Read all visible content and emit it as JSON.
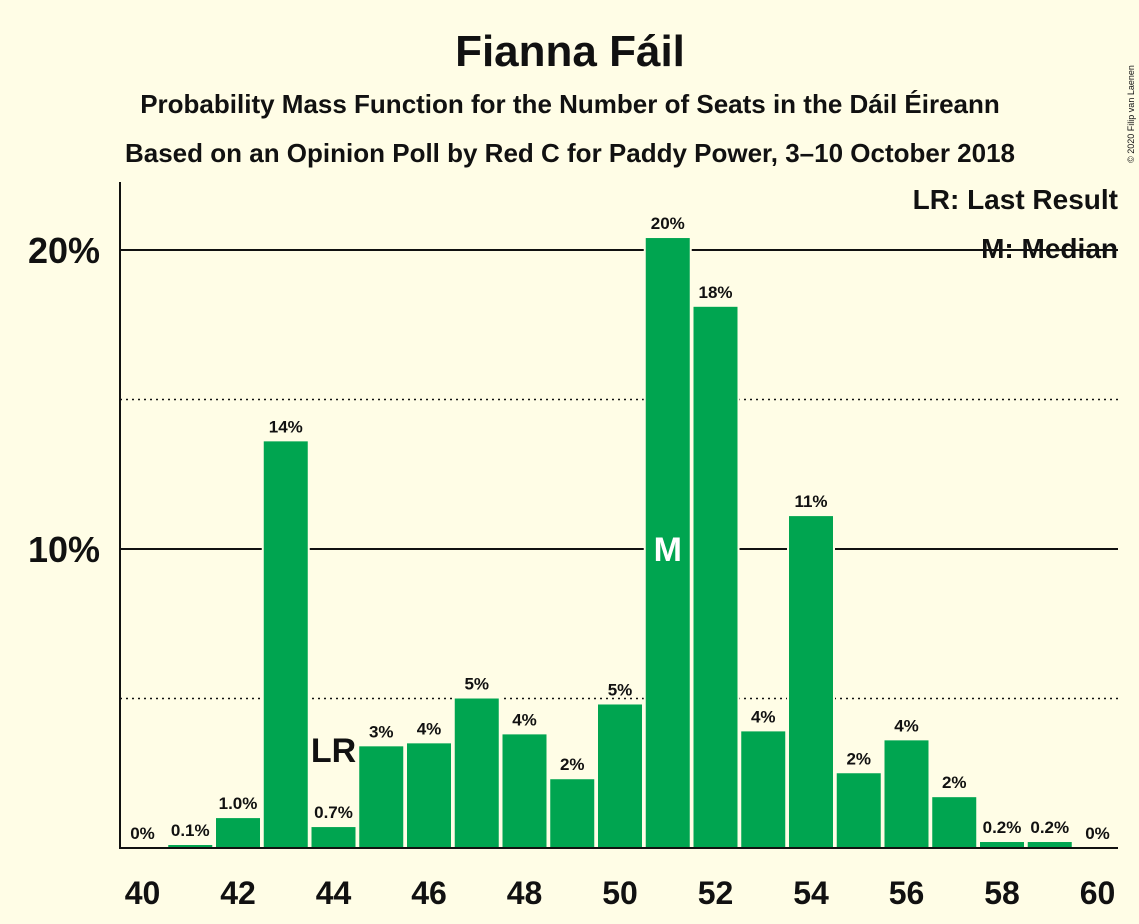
{
  "chart_data": {
    "type": "bar",
    "title": "Fianna Fáil",
    "subtitle_lines": [
      "Probability Mass Function for the Number of Seats in the Dáil Éireann",
      "Based on an Opinion Poll by Red C for Paddy Power, 3–10 October 2018"
    ],
    "copyright": "© 2020 Filip van Laenen",
    "legend": [
      "LR: Last Result",
      "M: Median"
    ],
    "legend_position": "top-right",
    "x": [
      40,
      41,
      42,
      43,
      44,
      45,
      46,
      47,
      48,
      49,
      50,
      51,
      52,
      53,
      54,
      55,
      56,
      57,
      58,
      59,
      60
    ],
    "values": [
      0,
      0.1,
      1.0,
      13.6,
      0.7,
      3.4,
      3.5,
      5.0,
      3.8,
      2.3,
      4.8,
      20.4,
      18.1,
      3.9,
      11.1,
      2.5,
      3.6,
      1.7,
      0.2,
      0.2,
      0
    ],
    "data_labels": [
      "0%",
      "0.1%",
      "1.0%",
      "14%",
      "0.7%",
      "3%",
      "4%",
      "5%",
      "4%",
      "2%",
      "5%",
      "20%",
      "18%",
      "4%",
      "11%",
      "2%",
      "4%",
      "2%",
      "0.2%",
      "0.2%",
      "0%"
    ],
    "x_ticks": [
      "40",
      "42",
      "44",
      "46",
      "48",
      "50",
      "52",
      "54",
      "56",
      "58",
      "60"
    ],
    "y_ticks": [
      "10%",
      "20%"
    ],
    "ylim": [
      0,
      22.3
    ],
    "solid_gridlines": [
      10,
      20
    ],
    "dotted_gridlines": [
      5,
      15
    ],
    "last_result": {
      "seat": 44,
      "label": "LR"
    },
    "median": {
      "seat": 51,
      "label": "M"
    },
    "bar_color": "#00a550",
    "background": "#fffde6"
  }
}
